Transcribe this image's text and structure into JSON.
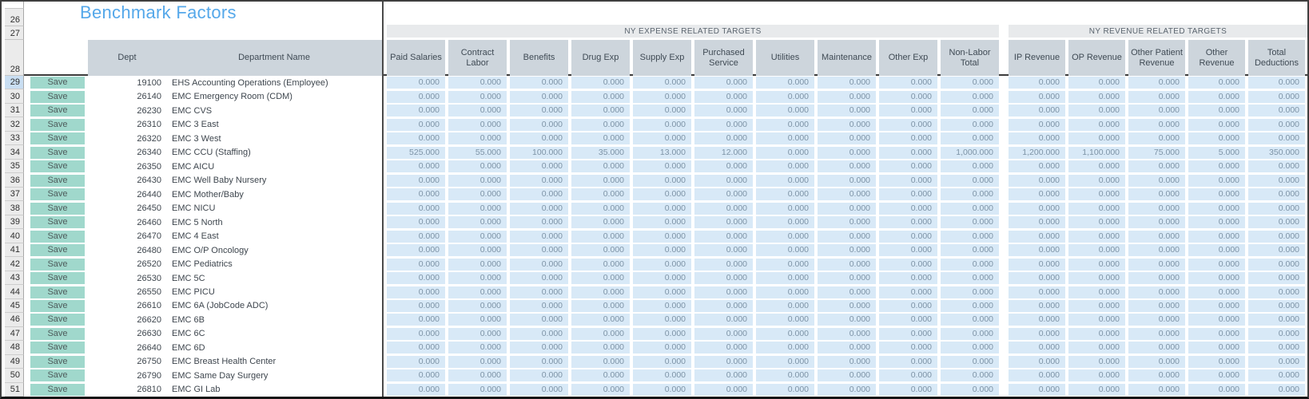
{
  "title": "Benchmark Factors",
  "gutter": [
    "26",
    "27",
    "28"
  ],
  "selected_row": "29",
  "colors": {
    "title_blue": "#55a8ea",
    "header_cell_gray": "#cdd5dc",
    "group_band_gray": "#e8eaec",
    "value_cell_blue": "#d8e9f7",
    "value_text": "#7d93a6",
    "save_button_teal": "#a0d8cc",
    "selected_gutter_blue": "#c9def2",
    "divider_dark": "#4a4a4a"
  },
  "table": {
    "save_label": "Save",
    "left_headers": {
      "dept": "Dept",
      "name": "Department Name"
    },
    "groups": [
      {
        "label": "NY EXPENSE RELATED TARGETS",
        "columns": [
          "Paid Salaries",
          "Contract Labor",
          "Benefits",
          "Drug Exp",
          "Supply Exp",
          "Purchased Service",
          "Utilities",
          "Maintenance",
          "Other Exp",
          "Non-Labor Total"
        ]
      },
      {
        "label": "NY REVENUE RELATED TARGETS",
        "columns": [
          "IP Revenue",
          "OP Revenue",
          "Other Patient Revenue",
          "Other Revenue",
          "Total Deductions"
        ]
      }
    ],
    "rows": [
      {
        "num": "29",
        "dept": "19100",
        "name": "EHS Accounting Operations (Employee)",
        "values": [
          "0.000",
          "0.000",
          "0.000",
          "0.000",
          "0.000",
          "0.000",
          "0.000",
          "0.000",
          "0.000",
          "0.000",
          "0.000",
          "0.000",
          "0.000",
          "0.000",
          "0.000"
        ]
      },
      {
        "num": "30",
        "dept": "26140",
        "name": "EMC Emergency Room (CDM)",
        "values": [
          "0.000",
          "0.000",
          "0.000",
          "0.000",
          "0.000",
          "0.000",
          "0.000",
          "0.000",
          "0.000",
          "0.000",
          "0.000",
          "0.000",
          "0.000",
          "0.000",
          "0.000"
        ]
      },
      {
        "num": "31",
        "dept": "26230",
        "name": "EMC CVS",
        "values": [
          "0.000",
          "0.000",
          "0.000",
          "0.000",
          "0.000",
          "0.000",
          "0.000",
          "0.000",
          "0.000",
          "0.000",
          "0.000",
          "0.000",
          "0.000",
          "0.000",
          "0.000"
        ]
      },
      {
        "num": "32",
        "dept": "26310",
        "name": "EMC 3 East",
        "values": [
          "0.000",
          "0.000",
          "0.000",
          "0.000",
          "0.000",
          "0.000",
          "0.000",
          "0.000",
          "0.000",
          "0.000",
          "0.000",
          "0.000",
          "0.000",
          "0.000",
          "0.000"
        ]
      },
      {
        "num": "33",
        "dept": "26320",
        "name": "EMC 3 West",
        "values": [
          "0.000",
          "0.000",
          "0.000",
          "0.000",
          "0.000",
          "0.000",
          "0.000",
          "0.000",
          "0.000",
          "0.000",
          "0.000",
          "0.000",
          "0.000",
          "0.000",
          "0.000"
        ]
      },
      {
        "num": "34",
        "dept": "26340",
        "name": "EMC CCU (Staffing)",
        "values": [
          "525.000",
          "55.000",
          "100.000",
          "35.000",
          "13.000",
          "12.000",
          "0.000",
          "0.000",
          "0.000",
          "1,000.000",
          "1,200.000",
          "1,100.000",
          "75.000",
          "5.000",
          "350.000"
        ]
      },
      {
        "num": "35",
        "dept": "26350",
        "name": "EMC AICU",
        "values": [
          "0.000",
          "0.000",
          "0.000",
          "0.000",
          "0.000",
          "0.000",
          "0.000",
          "0.000",
          "0.000",
          "0.000",
          "0.000",
          "0.000",
          "0.000",
          "0.000",
          "0.000"
        ]
      },
      {
        "num": "36",
        "dept": "26430",
        "name": "EMC Well Baby Nursery",
        "values": [
          "0.000",
          "0.000",
          "0.000",
          "0.000",
          "0.000",
          "0.000",
          "0.000",
          "0.000",
          "0.000",
          "0.000",
          "0.000",
          "0.000",
          "0.000",
          "0.000",
          "0.000"
        ]
      },
      {
        "num": "37",
        "dept": "26440",
        "name": "EMC Mother/Baby",
        "values": [
          "0.000",
          "0.000",
          "0.000",
          "0.000",
          "0.000",
          "0.000",
          "0.000",
          "0.000",
          "0.000",
          "0.000",
          "0.000",
          "0.000",
          "0.000",
          "0.000",
          "0.000"
        ]
      },
      {
        "num": "38",
        "dept": "26450",
        "name": "EMC NICU",
        "values": [
          "0.000",
          "0.000",
          "0.000",
          "0.000",
          "0.000",
          "0.000",
          "0.000",
          "0.000",
          "0.000",
          "0.000",
          "0.000",
          "0.000",
          "0.000",
          "0.000",
          "0.000"
        ]
      },
      {
        "num": "39",
        "dept": "26460",
        "name": "EMC 5 North",
        "values": [
          "0.000",
          "0.000",
          "0.000",
          "0.000",
          "0.000",
          "0.000",
          "0.000",
          "0.000",
          "0.000",
          "0.000",
          "0.000",
          "0.000",
          "0.000",
          "0.000",
          "0.000"
        ]
      },
      {
        "num": "40",
        "dept": "26470",
        "name": "EMC 4 East",
        "values": [
          "0.000",
          "0.000",
          "0.000",
          "0.000",
          "0.000",
          "0.000",
          "0.000",
          "0.000",
          "0.000",
          "0.000",
          "0.000",
          "0.000",
          "0.000",
          "0.000",
          "0.000"
        ]
      },
      {
        "num": "41",
        "dept": "26480",
        "name": "EMC O/P Oncology",
        "values": [
          "0.000",
          "0.000",
          "0.000",
          "0.000",
          "0.000",
          "0.000",
          "0.000",
          "0.000",
          "0.000",
          "0.000",
          "0.000",
          "0.000",
          "0.000",
          "0.000",
          "0.000"
        ]
      },
      {
        "num": "42",
        "dept": "26520",
        "name": "EMC Pediatrics",
        "values": [
          "0.000",
          "0.000",
          "0.000",
          "0.000",
          "0.000",
          "0.000",
          "0.000",
          "0.000",
          "0.000",
          "0.000",
          "0.000",
          "0.000",
          "0.000",
          "0.000",
          "0.000"
        ]
      },
      {
        "num": "43",
        "dept": "26530",
        "name": "EMC 5C",
        "values": [
          "0.000",
          "0.000",
          "0.000",
          "0.000",
          "0.000",
          "0.000",
          "0.000",
          "0.000",
          "0.000",
          "0.000",
          "0.000",
          "0.000",
          "0.000",
          "0.000",
          "0.000"
        ]
      },
      {
        "num": "44",
        "dept": "26550",
        "name": "EMC PICU",
        "values": [
          "0.000",
          "0.000",
          "0.000",
          "0.000",
          "0.000",
          "0.000",
          "0.000",
          "0.000",
          "0.000",
          "0.000",
          "0.000",
          "0.000",
          "0.000",
          "0.000",
          "0.000"
        ]
      },
      {
        "num": "45",
        "dept": "26610",
        "name": "EMC 6A (JobCode ADC)",
        "values": [
          "0.000",
          "0.000",
          "0.000",
          "0.000",
          "0.000",
          "0.000",
          "0.000",
          "0.000",
          "0.000",
          "0.000",
          "0.000",
          "0.000",
          "0.000",
          "0.000",
          "0.000"
        ]
      },
      {
        "num": "46",
        "dept": "26620",
        "name": "EMC 6B",
        "values": [
          "0.000",
          "0.000",
          "0.000",
          "0.000",
          "0.000",
          "0.000",
          "0.000",
          "0.000",
          "0.000",
          "0.000",
          "0.000",
          "0.000",
          "0.000",
          "0.000",
          "0.000"
        ]
      },
      {
        "num": "47",
        "dept": "26630",
        "name": "EMC 6C",
        "values": [
          "0.000",
          "0.000",
          "0.000",
          "0.000",
          "0.000",
          "0.000",
          "0.000",
          "0.000",
          "0.000",
          "0.000",
          "0.000",
          "0.000",
          "0.000",
          "0.000",
          "0.000"
        ]
      },
      {
        "num": "48",
        "dept": "26640",
        "name": "EMC 6D",
        "values": [
          "0.000",
          "0.000",
          "0.000",
          "0.000",
          "0.000",
          "0.000",
          "0.000",
          "0.000",
          "0.000",
          "0.000",
          "0.000",
          "0.000",
          "0.000",
          "0.000",
          "0.000"
        ]
      },
      {
        "num": "49",
        "dept": "26750",
        "name": "EMC Breast Health Center",
        "values": [
          "0.000",
          "0.000",
          "0.000",
          "0.000",
          "0.000",
          "0.000",
          "0.000",
          "0.000",
          "0.000",
          "0.000",
          "0.000",
          "0.000",
          "0.000",
          "0.000",
          "0.000"
        ]
      },
      {
        "num": "50",
        "dept": "26790",
        "name": "EMC Same Day Surgery",
        "values": [
          "0.000",
          "0.000",
          "0.000",
          "0.000",
          "0.000",
          "0.000",
          "0.000",
          "0.000",
          "0.000",
          "0.000",
          "0.000",
          "0.000",
          "0.000",
          "0.000",
          "0.000"
        ]
      },
      {
        "num": "51",
        "dept": "26810",
        "name": "EMC GI Lab",
        "values": [
          "0.000",
          "0.000",
          "0.000",
          "0.000",
          "0.000",
          "0.000",
          "0.000",
          "0.000",
          "0.000",
          "0.000",
          "0.000",
          "0.000",
          "0.000",
          "0.000",
          "0.000"
        ]
      }
    ]
  }
}
